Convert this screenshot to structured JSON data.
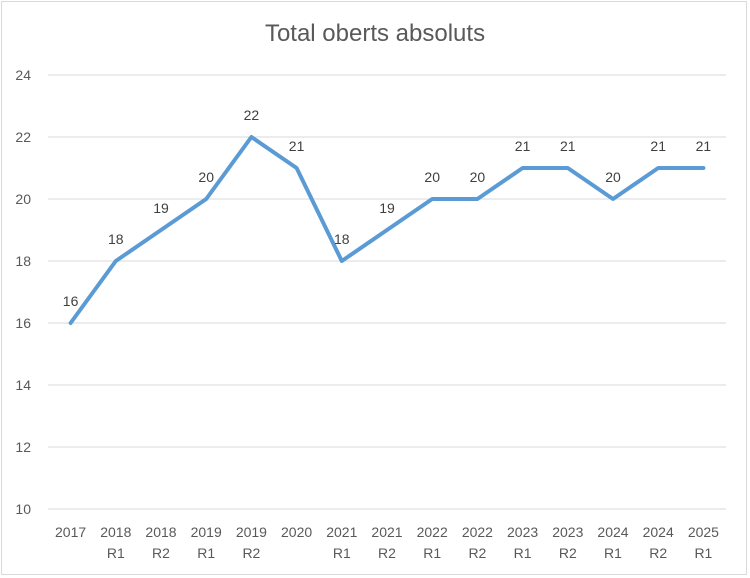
{
  "chart_data": {
    "type": "line",
    "title": "Total oberts absoluts",
    "xlabel": "",
    "ylabel": "",
    "categories": [
      [
        "2017"
      ],
      [
        "2018",
        "R1"
      ],
      [
        "2018",
        "R2"
      ],
      [
        "2019",
        "R1"
      ],
      [
        "2019",
        "R2"
      ],
      [
        "2020"
      ],
      [
        "2021",
        "R1"
      ],
      [
        "2021",
        "R2"
      ],
      [
        "2022",
        "R1"
      ],
      [
        "2022",
        "R2"
      ],
      [
        "2023",
        "R1"
      ],
      [
        "2023",
        "R2"
      ],
      [
        "2024",
        "R1"
      ],
      [
        "2024",
        "R2"
      ],
      [
        "2025",
        "R1"
      ]
    ],
    "series": [
      {
        "values": [
          16,
          18,
          19,
          20,
          22,
          21,
          18,
          19,
          20,
          20,
          21,
          21,
          20,
          21,
          21
        ]
      }
    ],
    "ylim": [
      10,
      24
    ],
    "yticks": [
      "10",
      "12",
      "14",
      "16",
      "18",
      "20",
      "22",
      "24"
    ],
    "grid": true,
    "legend": "none",
    "color": "#5b9bd5"
  }
}
